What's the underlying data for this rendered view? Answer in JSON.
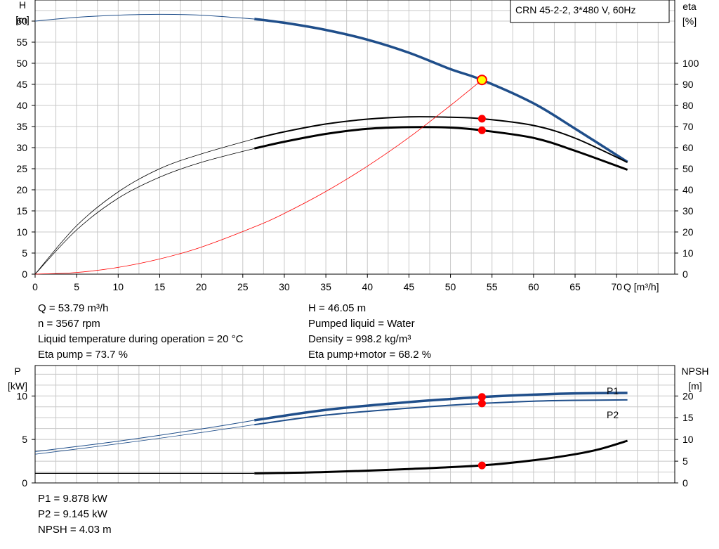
{
  "chart_data": [
    {
      "type": "line",
      "title": "CRN 45-2-2, 3*480 V, 60Hz",
      "xlabel": "Q [m³/h]",
      "ylabel": "H\n[m]",
      "ylabel_right": "eta\n[%]",
      "xlim": [
        0,
        77
      ],
      "xticks": [
        0,
        5,
        10,
        15,
        20,
        25,
        30,
        35,
        40,
        45,
        50,
        55,
        60,
        65,
        70
      ],
      "ylim": [
        0,
        65
      ],
      "yticks": [
        0,
        5,
        10,
        15,
        20,
        25,
        30,
        35,
        40,
        45,
        50,
        55,
        60
      ],
      "ylim_right": [
        0,
        130
      ],
      "yticks_right": [
        0,
        10,
        20,
        30,
        40,
        50,
        60,
        70,
        80,
        90,
        100
      ],
      "grid": true,
      "series": [
        {
          "axis": "left",
          "color": "#1f4e8a",
          "x": [
            0,
            5,
            10,
            15,
            20,
            26.4,
            30,
            35,
            40,
            45,
            50,
            53.79,
            60,
            65,
            71.3
          ],
          "y": [
            60.0,
            60.9,
            61.4,
            61.6,
            61.4,
            60.5,
            59.6,
            57.9,
            55.6,
            52.5,
            48.6,
            46.05,
            40.5,
            34.5,
            26.6
          ]
        },
        {
          "axis": "right",
          "color": "#000000",
          "x": [
            0,
            5,
            10,
            15,
            20,
            26.4,
            30,
            35,
            40,
            45,
            50,
            53.79,
            60,
            65,
            71.3
          ],
          "y": [
            0,
            23,
            39,
            50,
            57,
            64.2,
            67.5,
            71.2,
            73.5,
            74.6,
            74.4,
            73.7,
            70.5,
            64.5,
            53
          ]
        },
        {
          "axis": "right",
          "color": "#000000",
          "x": [
            0,
            5,
            10,
            15,
            20,
            26.4,
            30,
            35,
            40,
            45,
            50,
            53.79,
            60,
            65,
            71.3
          ],
          "y": [
            0,
            21,
            36,
            46,
            53,
            59.6,
            62.8,
            66.5,
            68.9,
            69.7,
            69.5,
            68.2,
            64.6,
            58.5,
            49.5
          ]
        },
        {
          "axis": "left",
          "color": "#ff0000",
          "x": [
            0,
            5,
            10,
            15,
            20,
            26.4,
            30,
            35,
            40,
            45,
            50,
            53.79
          ],
          "y": [
            0,
            0.4,
            1.6,
            3.6,
            6.4,
            11.2,
            14.4,
            19.6,
            25.6,
            32.4,
            40.0,
            46.05
          ]
        }
      ],
      "operating_point": {
        "x": 53.79,
        "H": 46.05,
        "eta_pump": 73.7,
        "eta_total": 68.2
      }
    },
    {
      "type": "line",
      "xlabel": "",
      "ylabel": "P\n[kW]",
      "ylabel_right": "NPSH\n[m]",
      "xlim": [
        0,
        77
      ],
      "ylim": [
        0,
        13.5
      ],
      "yticks": [
        0,
        5,
        10
      ],
      "ylim_right": [
        0,
        27
      ],
      "yticks_right": [
        0,
        5,
        10,
        15,
        20
      ],
      "grid": true,
      "series": [
        {
          "name": "P1",
          "axis": "left",
          "color": "#1f4e8a",
          "x": [
            0,
            10,
            20,
            26.4,
            35,
            45,
            53.79,
            60,
            65,
            71.3
          ],
          "y": [
            3.6,
            4.8,
            6.2,
            7.2,
            8.4,
            9.3,
            9.878,
            10.15,
            10.3,
            10.35
          ]
        },
        {
          "name": "P2",
          "axis": "left",
          "color": "#1f4e8a",
          "x": [
            0,
            10,
            20,
            26.4,
            35,
            45,
            53.79,
            60,
            65,
            71.3
          ],
          "y": [
            3.3,
            4.5,
            5.8,
            6.7,
            7.8,
            8.6,
            9.145,
            9.4,
            9.5,
            9.55
          ]
        },
        {
          "name": "NPSH",
          "axis": "right",
          "color": "#000000",
          "x": [
            0,
            10,
            20,
            26.4,
            35,
            45,
            53.79,
            60,
            65,
            68,
            71.3
          ],
          "y": [
            2.2,
            2.2,
            2.2,
            2.2,
            2.5,
            3.2,
            4.03,
            5.2,
            6.6,
            7.8,
            9.7
          ]
        }
      ],
      "operating_point": {
        "x": 53.79,
        "P1": 9.878,
        "P2": 9.145,
        "NPSH": 4.03
      }
    }
  ],
  "info_top": {
    "left": [
      "Q = 53.79 m³/h",
      "n = 3567 rpm",
      "Liquid temperature during operation = 20 °C",
      "Eta pump = 73.7 %"
    ],
    "right": [
      "H = 46.05 m",
      "Pumped liquid = Water",
      "Density = 998.2 kg/m³",
      "Eta pump+motor = 68.2 %"
    ]
  },
  "info_bottom": [
    "P1 = 9.878 kW",
    "P2 = 9.145 kW",
    "NPSH = 4.03 m"
  ],
  "colors": {
    "grid": "#c8c8c8",
    "curve_blue": "#1f4e8a",
    "efficiency": "#000000",
    "marker": "#ff0000",
    "marker_highlight": "#ffff00"
  }
}
